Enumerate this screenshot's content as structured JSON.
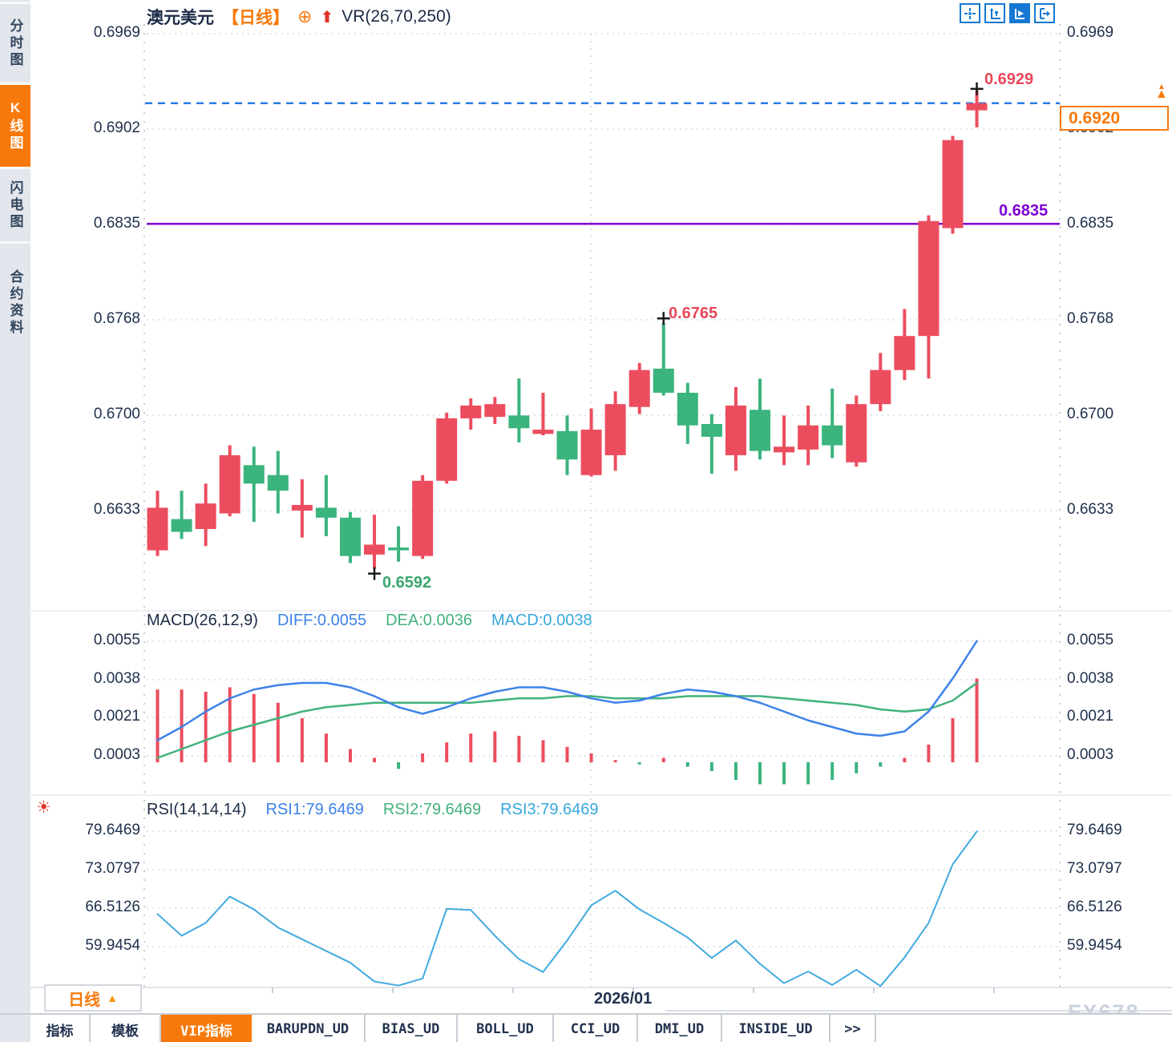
{
  "header": {
    "symbol": "澳元美元",
    "period": "【日线】",
    "circle_plus_icon": "⊕",
    "arrow_icon": "⬆",
    "indicator": "VR(26,70,250)"
  },
  "sidebar": {
    "items": [
      {
        "label": "分时图",
        "active": false
      },
      {
        "label": "K线图",
        "active": true
      },
      {
        "label": "闪电图",
        "active": false
      },
      {
        "label": "合约资料",
        "active": false
      }
    ]
  },
  "toolbar": {
    "buttons": [
      {
        "name": "pan-crosshair",
        "active": false
      },
      {
        "name": "axis-scale",
        "active": false
      },
      {
        "name": "auto-scale",
        "active": true
      },
      {
        "name": "exit-scale",
        "active": false
      }
    ]
  },
  "main_axis": {
    "ticks": [
      "0.6969",
      "0.6902",
      "0.6835",
      "0.6768",
      "0.6700",
      "0.6633"
    ]
  },
  "annotations": {
    "session_high": "0.6929",
    "swing_high": "0.6765",
    "swing_low": "0.6592",
    "support_level": "0.6835",
    "last_price": "0.6920",
    "price_marker_arrow": "▲"
  },
  "macd_panel": {
    "title": "MACD(26,12,9)",
    "diff": "DIFF:0.0055",
    "dea": "DEA:0.0036",
    "macd": "MACD:0.0038",
    "ticks": [
      "0.0055",
      "0.0038",
      "0.0021",
      "0.0003"
    ]
  },
  "rsi_panel": {
    "title": "RSI(14,14,14)",
    "rsi1": "RSI1:79.6469",
    "rsi2": "RSI2:79.6469",
    "rsi3": "RSI3:79.6469",
    "ticks": [
      "79.6469",
      "73.0797",
      "66.5126",
      "59.9454"
    ]
  },
  "time_axis": {
    "month_label": "2026/01"
  },
  "period_button": {
    "label": "日线",
    "arrow": "▲"
  },
  "bottom_tabs": {
    "items": [
      {
        "label": "指标",
        "active": false
      },
      {
        "label": "模板",
        "active": false
      },
      {
        "label": "VIP指标",
        "active": true
      },
      {
        "label": "BARUPDN_UD",
        "active": false
      },
      {
        "label": "BIAS_UD",
        "active": false
      },
      {
        "label": "BOLL_UD",
        "active": false
      },
      {
        "label": "CCI_UD",
        "active": false
      },
      {
        "label": "DMI_UD",
        "active": false
      },
      {
        "label": "INSIDE_UD",
        "active": false
      },
      {
        "label": ">>",
        "active": false
      }
    ]
  },
  "artifacts": {
    "dash_group_1": "- -  - -",
    "dash_group_2": "- - - -"
  },
  "watermark": "FX678",
  "colors": {
    "up": "#ec4d5e",
    "down": "#3bb47d",
    "accent_orange": "#f8790b",
    "purple": "#7e00d2",
    "last_price_blue": "#2a7de1",
    "diff_blue": "#3e82e8",
    "dea_green": "#43b27c",
    "rsi_blue": "#41aadf",
    "icon_blue": "#1678d2",
    "grid": "#dde1e8"
  },
  "chart_data": [
    {
      "type": "candlestick",
      "title": "澳元美元 日线 (AUD/USD daily)",
      "up_color_convention": "red=up, green=down",
      "yticks": [
        0.6969,
        0.6902,
        0.6835,
        0.6768,
        0.67,
        0.6633
      ],
      "ylim": [
        0.659,
        0.697
      ],
      "xlabel_month": "2026/01",
      "ohlc": [
        [
          0.6605,
          0.6647,
          0.6601,
          0.6635
        ],
        [
          0.6627,
          0.6647,
          0.6613,
          0.6618
        ],
        [
          0.662,
          0.6652,
          0.6608,
          0.6638
        ],
        [
          0.6631,
          0.6679,
          0.6629,
          0.6672
        ],
        [
          0.6665,
          0.6678,
          0.6625,
          0.6652
        ],
        [
          0.6658,
          0.6675,
          0.6631,
          0.6647
        ],
        [
          0.6633,
          0.6655,
          0.6614,
          0.6637
        ],
        [
          0.6635,
          0.6658,
          0.6615,
          0.6628
        ],
        [
          0.6628,
          0.6632,
          0.6596,
          0.6601
        ],
        [
          0.6602,
          0.663,
          0.6592,
          0.6609
        ],
        [
          0.6607,
          0.6622,
          0.6597,
          0.6605
        ],
        [
          0.6601,
          0.6658,
          0.6599,
          0.6654
        ],
        [
          0.6654,
          0.6702,
          0.6652,
          0.6698
        ],
        [
          0.6698,
          0.6712,
          0.669,
          0.6707
        ],
        [
          0.6699,
          0.6713,
          0.6694,
          0.6708
        ],
        [
          0.67,
          0.6726,
          0.6681,
          0.6691
        ],
        [
          0.6687,
          0.6716,
          0.6686,
          0.669
        ],
        [
          0.6689,
          0.67,
          0.6658,
          0.6669
        ],
        [
          0.6658,
          0.6705,
          0.6657,
          0.669
        ],
        [
          0.6672,
          0.6717,
          0.6661,
          0.6708
        ],
        [
          0.6706,
          0.6737,
          0.6701,
          0.6732
        ],
        [
          0.6733,
          0.6765,
          0.6714,
          0.6716
        ],
        [
          0.6716,
          0.6723,
          0.668,
          0.6693
        ],
        [
          0.6694,
          0.6701,
          0.6659,
          0.6685
        ],
        [
          0.6672,
          0.672,
          0.6661,
          0.6707
        ],
        [
          0.6704,
          0.6726,
          0.6669,
          0.6675
        ],
        [
          0.6674,
          0.67,
          0.6665,
          0.6678
        ],
        [
          0.6676,
          0.6707,
          0.6665,
          0.6693
        ],
        [
          0.6693,
          0.6719,
          0.667,
          0.6679
        ],
        [
          0.6667,
          0.6714,
          0.6664,
          0.6708
        ],
        [
          0.6708,
          0.6744,
          0.6703,
          0.6732
        ],
        [
          0.6732,
          0.6775,
          0.6725,
          0.6756
        ],
        [
          0.6756,
          0.6841,
          0.6726,
          0.6837
        ],
        [
          0.6832,
          0.6897,
          0.6828,
          0.6894
        ],
        [
          0.6915,
          0.6929,
          0.6903,
          0.692
        ]
      ],
      "annotations": {
        "high": 0.6929,
        "high_index": 34,
        "low": 0.6592,
        "low_index": 9,
        "swing_high": 0.6765,
        "swing_high_index": 21,
        "support_line": 0.6835,
        "last_price": 0.692
      }
    },
    {
      "type": "bar",
      "name": "MACD(26,12,9)",
      "yticks": [
        0.0055,
        0.0038,
        0.0021,
        0.0003
      ],
      "hist": [
        0.0033,
        0.0033,
        0.0032,
        0.0034,
        0.0031,
        0.0027,
        0.002,
        0.0013,
        0.0006,
        0.0002,
        -0.0003,
        0.0004,
        0.0009,
        0.0013,
        0.0014,
        0.0012,
        0.001,
        0.0007,
        0.0004,
        0.0001,
        -0.0001,
        0.0002,
        -0.0002,
        -0.0004,
        -0.0008,
        -0.001,
        -0.001,
        -0.001,
        -0.0008,
        -0.0005,
        -0.0002,
        0.0002,
        0.0008,
        0.002,
        0.0038
      ],
      "series": [
        {
          "name": "DIFF",
          "values": [
            0.001,
            0.0016,
            0.0023,
            0.0029,
            0.0033,
            0.0035,
            0.0036,
            0.0036,
            0.0034,
            0.003,
            0.0025,
            0.0022,
            0.0025,
            0.0029,
            0.0032,
            0.0034,
            0.0034,
            0.0032,
            0.0029,
            0.0027,
            0.0028,
            0.0031,
            0.0033,
            0.0032,
            0.003,
            0.0027,
            0.0023,
            0.0019,
            0.0016,
            0.0013,
            0.0012,
            0.0014,
            0.0023,
            0.0038,
            0.0055
          ]
        },
        {
          "name": "DEA",
          "values": [
            0.0002,
            0.0006,
            0.001,
            0.0014,
            0.0017,
            0.002,
            0.0023,
            0.0025,
            0.0026,
            0.0027,
            0.0027,
            0.0027,
            0.0027,
            0.0027,
            0.0028,
            0.0029,
            0.0029,
            0.003,
            0.003,
            0.0029,
            0.0029,
            0.0029,
            0.003,
            0.003,
            0.003,
            0.003,
            0.0029,
            0.0028,
            0.0027,
            0.0026,
            0.0024,
            0.0023,
            0.0024,
            0.0028,
            0.0036
          ]
        }
      ]
    },
    {
      "type": "line",
      "name": "RSI(14,14,14)",
      "yticks": [
        79.6469,
        73.0797,
        66.5126,
        59.9454
      ],
      "values": [
        65.5,
        61.8,
        64.0,
        68.5,
        66.3,
        63.2,
        61.2,
        59.2,
        57.2,
        54.0,
        53.3,
        54.5,
        66.4,
        66.2,
        61.8,
        57.8,
        55.6,
        61.0,
        67.0,
        69.5,
        66.3,
        64.0,
        61.5,
        58.0,
        61.0,
        57.0,
        53.7,
        55.7,
        53.4,
        56.0,
        53.2,
        58.1,
        64.0,
        74.0,
        79.6
      ]
    }
  ]
}
